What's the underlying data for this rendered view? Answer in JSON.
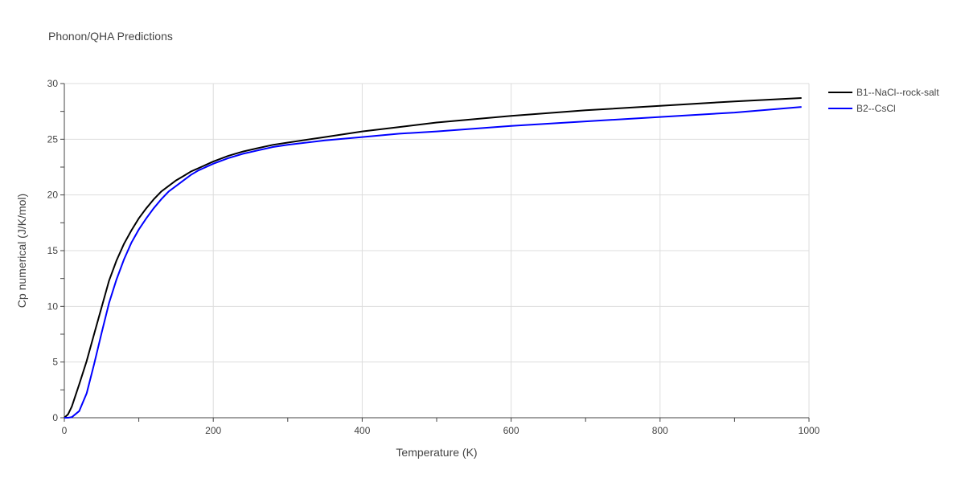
{
  "chart_data": {
    "type": "line",
    "title": "Phonon/QHA Predictions",
    "xlabel": "Temperature (K)",
    "ylabel": "Cp numerical (J/K/mol)",
    "xlim": [
      0,
      1000
    ],
    "ylim": [
      0,
      30
    ],
    "xticks": [
      0,
      200,
      400,
      600,
      800,
      1000
    ],
    "yticks": [
      0,
      5,
      10,
      15,
      20,
      25,
      30
    ],
    "grid": true,
    "legend_position": "top-right",
    "series": [
      {
        "name": "B1--NaCl--rock-salt",
        "color": "#000000",
        "x": [
          0,
          5,
          10,
          20,
          30,
          40,
          50,
          60,
          70,
          80,
          90,
          100,
          110,
          120,
          130,
          140,
          150,
          160,
          170,
          180,
          200,
          220,
          240,
          260,
          280,
          300,
          350,
          400,
          450,
          500,
          600,
          700,
          800,
          900,
          990
        ],
        "y": [
          0,
          0.3,
          1.0,
          3.0,
          5.1,
          7.5,
          9.9,
          12.3,
          14.1,
          15.6,
          16.8,
          17.9,
          18.8,
          19.6,
          20.3,
          20.8,
          21.3,
          21.7,
          22.1,
          22.4,
          23.0,
          23.5,
          23.9,
          24.2,
          24.5,
          24.7,
          25.2,
          25.7,
          26.1,
          26.5,
          27.1,
          27.6,
          28.0,
          28.4,
          28.7
        ]
      },
      {
        "name": "B2--CsCl",
        "color": "#0000ff",
        "x": [
          0,
          5,
          10,
          20,
          30,
          40,
          50,
          60,
          70,
          80,
          90,
          100,
          110,
          120,
          130,
          140,
          150,
          160,
          170,
          180,
          200,
          220,
          240,
          260,
          280,
          300,
          350,
          400,
          450,
          500,
          600,
          700,
          800,
          900,
          990
        ],
        "y": [
          0,
          0,
          0.05,
          0.6,
          2.2,
          4.8,
          7.6,
          10.3,
          12.4,
          14.2,
          15.7,
          16.9,
          17.9,
          18.8,
          19.6,
          20.3,
          20.8,
          21.3,
          21.8,
          22.2,
          22.8,
          23.3,
          23.7,
          24.0,
          24.3,
          24.5,
          24.9,
          25.2,
          25.5,
          25.7,
          26.2,
          26.6,
          27.0,
          27.4,
          27.9
        ]
      }
    ]
  }
}
